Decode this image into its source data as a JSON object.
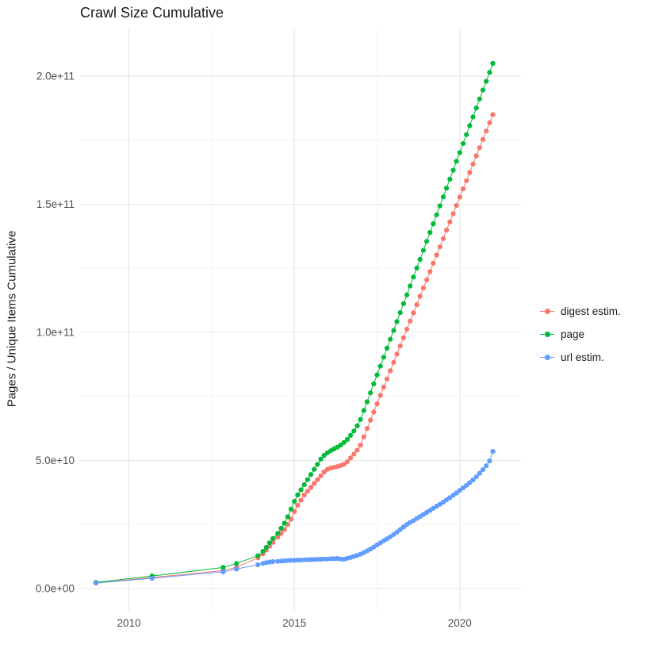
{
  "chart_data": {
    "type": "scatter",
    "title": "Crawl Size Cumulative",
    "xlabel": "",
    "ylabel": "Pages / Unique Items Cumulative",
    "note_units": "point values given as [year, cumulative count in billions (1e9)]",
    "x_domain": [
      2008.5,
      2021.85
    ],
    "y_domain_billions": [
      -8.7,
      218.6
    ],
    "x_ticks": [
      {
        "value": 2010,
        "label": "2010"
      },
      {
        "value": 2015,
        "label": "2015"
      },
      {
        "value": 2020,
        "label": "2020"
      }
    ],
    "y_ticks": [
      {
        "value_billions": 0,
        "label": "0.0e+00"
      },
      {
        "value_billions": 50,
        "label": "5.0e+10"
      },
      {
        "value_billions": 100,
        "label": "1.0e+11"
      },
      {
        "value_billions": 150,
        "label": "1.5e+11"
      },
      {
        "value_billions": 200,
        "label": "2.0e+11"
      }
    ],
    "x_minor_ticks": [
      2012.5,
      2017.5
    ],
    "y_minor_ticks_billions": [
      25,
      75,
      125,
      175
    ],
    "grid": {
      "show": true,
      "major_color": "#e8e8e8",
      "minor_color": "#f5f5f5"
    },
    "style": {
      "panel_background": "#ffffff",
      "text_color": "#1a1a1a",
      "tick_label_color": "#4d4d4d"
    },
    "legend": {
      "position": "right"
    },
    "series": [
      {
        "name": "digest estim.",
        "color": "#F8766D",
        "points": [
          [
            2009,
            2.2
          ],
          [
            2010.7,
            4.3
          ],
          [
            2012.85,
            7
          ],
          [
            2013.25,
            8.3
          ],
          [
            2013.9,
            12
          ],
          [
            2014.05,
            13.5
          ],
          [
            2014.15,
            15
          ],
          [
            2014.25,
            16.5
          ],
          [
            2014.35,
            18
          ],
          [
            2014.5,
            20
          ],
          [
            2014.6,
            21.5
          ],
          [
            2014.7,
            23
          ],
          [
            2014.8,
            25
          ],
          [
            2014.9,
            27
          ],
          [
            2015,
            30
          ],
          [
            2015.1,
            32.5
          ],
          [
            2015.2,
            34.5
          ],
          [
            2015.3,
            36.5
          ],
          [
            2015.4,
            38
          ],
          [
            2015.5,
            39.5
          ],
          [
            2015.6,
            41
          ],
          [
            2015.7,
            42.5
          ],
          [
            2015.8,
            44
          ],
          [
            2015.9,
            45.5
          ],
          [
            2016,
            46.5
          ],
          [
            2016.1,
            47
          ],
          [
            2016.2,
            47.3
          ],
          [
            2016.3,
            47.6
          ],
          [
            2016.4,
            48
          ],
          [
            2016.5,
            48.5
          ],
          [
            2016.6,
            49.5
          ],
          [
            2016.7,
            51
          ],
          [
            2016.8,
            52.5
          ],
          [
            2016.9,
            54
          ],
          [
            2017,
            56
          ],
          [
            2017.1,
            59.2
          ],
          [
            2017.2,
            62.5
          ],
          [
            2017.3,
            65.7
          ],
          [
            2017.4,
            68.9
          ],
          [
            2017.5,
            72.1
          ],
          [
            2017.6,
            75.4
          ],
          [
            2017.7,
            78.6
          ],
          [
            2017.8,
            81.8
          ],
          [
            2017.9,
            85
          ],
          [
            2018,
            88.3
          ],
          [
            2018.1,
            91.5
          ],
          [
            2018.2,
            94.7
          ],
          [
            2018.3,
            97.9
          ],
          [
            2018.4,
            101.2
          ],
          [
            2018.5,
            104.4
          ],
          [
            2018.6,
            107.6
          ],
          [
            2018.7,
            110.8
          ],
          [
            2018.8,
            114.1
          ],
          [
            2018.9,
            117.3
          ],
          [
            2019,
            120.5
          ],
          [
            2019.1,
            123.7
          ],
          [
            2019.2,
            127
          ],
          [
            2019.3,
            130.2
          ],
          [
            2019.4,
            133.4
          ],
          [
            2019.5,
            136.6
          ],
          [
            2019.6,
            139.9
          ],
          [
            2019.7,
            143.1
          ],
          [
            2019.8,
            146.3
          ],
          [
            2019.9,
            149.5
          ],
          [
            2020,
            152.8
          ],
          [
            2020.1,
            156
          ],
          [
            2020.2,
            159.2
          ],
          [
            2020.3,
            162.4
          ],
          [
            2020.4,
            165.7
          ],
          [
            2020.5,
            168.9
          ],
          [
            2020.6,
            172.1
          ],
          [
            2020.7,
            175.3
          ],
          [
            2020.8,
            178.6
          ],
          [
            2020.9,
            181.8
          ],
          [
            2021,
            185
          ]
        ]
      },
      {
        "name": "page",
        "color": "#00BA38",
        "points": [
          [
            2009,
            2.4
          ],
          [
            2010.7,
            4.9
          ],
          [
            2012.85,
            8.2
          ],
          [
            2013.25,
            9.8
          ],
          [
            2013.9,
            12.8
          ],
          [
            2014.05,
            14.5
          ],
          [
            2014.15,
            16
          ],
          [
            2014.25,
            17.8
          ],
          [
            2014.35,
            19.5
          ],
          [
            2014.5,
            21.5
          ],
          [
            2014.6,
            23.5
          ],
          [
            2014.7,
            25.5
          ],
          [
            2014.8,
            28
          ],
          [
            2014.9,
            31
          ],
          [
            2015,
            34
          ],
          [
            2015.1,
            36.5
          ],
          [
            2015.2,
            38.5
          ],
          [
            2015.3,
            40.5
          ],
          [
            2015.4,
            42.5
          ],
          [
            2015.5,
            44.5
          ],
          [
            2015.6,
            46.5
          ],
          [
            2015.7,
            48.5
          ],
          [
            2015.8,
            50.5
          ],
          [
            2015.9,
            52
          ],
          [
            2016,
            53
          ],
          [
            2016.1,
            53.8
          ],
          [
            2016.2,
            54.5
          ],
          [
            2016.3,
            55.2
          ],
          [
            2016.4,
            56
          ],
          [
            2016.5,
            57
          ],
          [
            2016.6,
            58.2
          ],
          [
            2016.7,
            59.8
          ],
          [
            2016.8,
            61.5
          ],
          [
            2016.9,
            63.5
          ],
          [
            2017,
            66
          ],
          [
            2017.1,
            69.5
          ],
          [
            2017.2,
            72.9
          ],
          [
            2017.3,
            76.4
          ],
          [
            2017.4,
            79.9
          ],
          [
            2017.5,
            83.4
          ],
          [
            2017.6,
            86.8
          ],
          [
            2017.7,
            90.3
          ],
          [
            2017.8,
            93.8
          ],
          [
            2017.9,
            97.3
          ],
          [
            2018,
            100.7
          ],
          [
            2018.1,
            104.2
          ],
          [
            2018.2,
            107.7
          ],
          [
            2018.3,
            111.2
          ],
          [
            2018.4,
            114.6
          ],
          [
            2018.5,
            118.1
          ],
          [
            2018.6,
            121.6
          ],
          [
            2018.7,
            125.1
          ],
          [
            2018.8,
            128.5
          ],
          [
            2018.9,
            132
          ],
          [
            2019,
            135.5
          ],
          [
            2019.1,
            139
          ],
          [
            2019.2,
            142.4
          ],
          [
            2019.3,
            145.9
          ],
          [
            2019.4,
            149.4
          ],
          [
            2019.5,
            152.9
          ],
          [
            2019.6,
            156.3
          ],
          [
            2019.7,
            159.8
          ],
          [
            2019.8,
            163.3
          ],
          [
            2019.9,
            166.8
          ],
          [
            2020,
            170.2
          ],
          [
            2020.1,
            173.7
          ],
          [
            2020.2,
            177.2
          ],
          [
            2020.3,
            180.7
          ],
          [
            2020.4,
            184.1
          ],
          [
            2020.5,
            187.6
          ],
          [
            2020.6,
            191.1
          ],
          [
            2020.7,
            194.6
          ],
          [
            2020.8,
            198
          ],
          [
            2020.9,
            201.5
          ],
          [
            2021,
            205
          ]
        ]
      },
      {
        "name": "url estim.",
        "color": "#619CFF",
        "points": [
          [
            2009,
            2.1
          ],
          [
            2010.7,
            4
          ],
          [
            2012.85,
            6.5
          ],
          [
            2013.25,
            7.6
          ],
          [
            2013.9,
            9.3
          ],
          [
            2014.05,
            9.8
          ],
          [
            2014.15,
            10.1
          ],
          [
            2014.25,
            10.3
          ],
          [
            2014.35,
            10.5
          ],
          [
            2014.5,
            10.6
          ],
          [
            2014.6,
            10.7
          ],
          [
            2014.7,
            10.8
          ],
          [
            2014.8,
            10.9
          ],
          [
            2014.9,
            11
          ],
          [
            2015,
            11
          ],
          [
            2015.1,
            11.1
          ],
          [
            2015.2,
            11.1
          ],
          [
            2015.3,
            11.2
          ],
          [
            2015.4,
            11.2
          ],
          [
            2015.5,
            11.3
          ],
          [
            2015.6,
            11.3
          ],
          [
            2015.7,
            11.4
          ],
          [
            2015.8,
            11.4
          ],
          [
            2015.9,
            11.5
          ],
          [
            2016,
            11.5
          ],
          [
            2016.1,
            11.6
          ],
          [
            2016.2,
            11.6
          ],
          [
            2016.3,
            11.7
          ],
          [
            2016.4,
            11.5
          ],
          [
            2016.5,
            11.4
          ],
          [
            2016.6,
            11.8
          ],
          [
            2016.7,
            12.1
          ],
          [
            2016.8,
            12.5
          ],
          [
            2016.9,
            12.9
          ],
          [
            2017,
            13.4
          ],
          [
            2017.1,
            14
          ],
          [
            2017.2,
            14.7
          ],
          [
            2017.3,
            15.4
          ],
          [
            2017.4,
            16.2
          ],
          [
            2017.5,
            17
          ],
          [
            2017.6,
            17.8
          ],
          [
            2017.7,
            18.6
          ],
          [
            2017.8,
            19.4
          ],
          [
            2017.9,
            20.2
          ],
          [
            2018,
            21.1
          ],
          [
            2018.1,
            22
          ],
          [
            2018.2,
            23
          ],
          [
            2018.3,
            24
          ],
          [
            2018.4,
            25
          ],
          [
            2018.5,
            25.8
          ],
          [
            2018.6,
            26.5
          ],
          [
            2018.7,
            27.3
          ],
          [
            2018.8,
            28.1
          ],
          [
            2018.9,
            28.9
          ],
          [
            2019,
            29.7
          ],
          [
            2019.1,
            30.5
          ],
          [
            2019.2,
            31.3
          ],
          [
            2019.3,
            32.1
          ],
          [
            2019.4,
            32.9
          ],
          [
            2019.5,
            33.7
          ],
          [
            2019.6,
            34.6
          ],
          [
            2019.7,
            35.5
          ],
          [
            2019.8,
            36.4
          ],
          [
            2019.9,
            37.3
          ],
          [
            2020,
            38.3
          ],
          [
            2020.1,
            39.3
          ],
          [
            2020.2,
            40.3
          ],
          [
            2020.3,
            41.3
          ],
          [
            2020.4,
            42.4
          ],
          [
            2020.5,
            43.6
          ],
          [
            2020.6,
            45
          ],
          [
            2020.7,
            46.4
          ],
          [
            2020.8,
            47.9
          ],
          [
            2020.9,
            49.8
          ],
          [
            2021,
            53.5
          ]
        ]
      }
    ]
  }
}
